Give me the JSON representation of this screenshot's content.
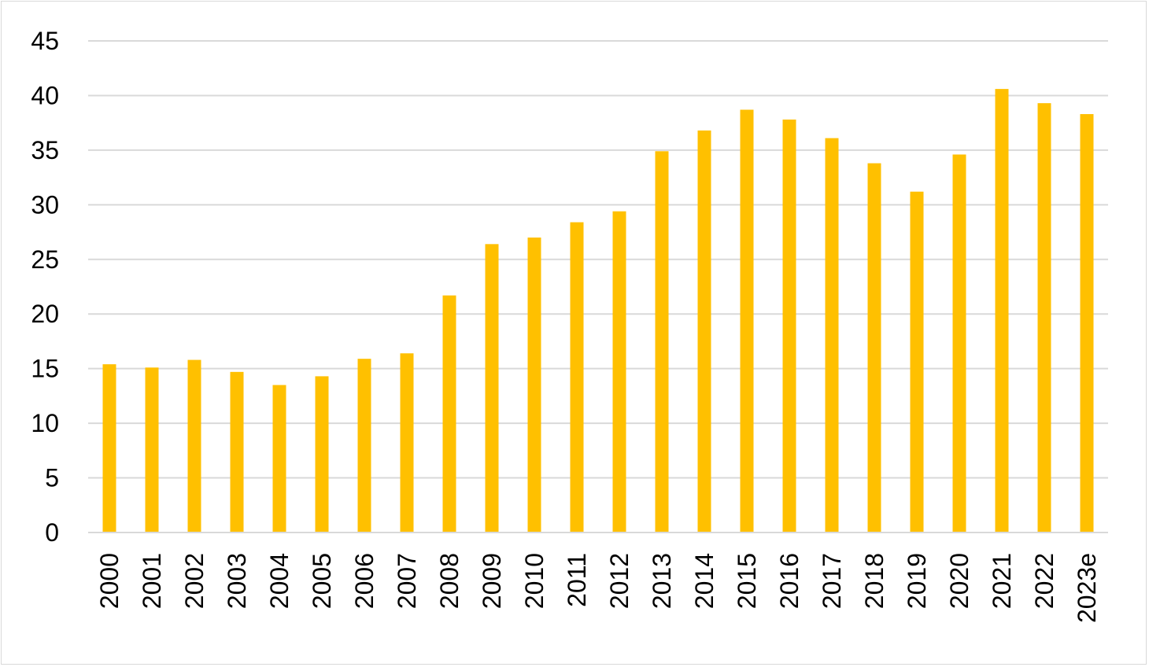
{
  "chart_data": {
    "type": "bar",
    "title": "",
    "xlabel": "",
    "ylabel": "",
    "categories": [
      "2000",
      "2001",
      "2002",
      "2003",
      "2004",
      "2005",
      "2006",
      "2007",
      "2008",
      "2009",
      "2010",
      "2011",
      "2012",
      "2013",
      "2014",
      "2015",
      "2016",
      "2017",
      "2018",
      "2019",
      "2020",
      "2021",
      "2022",
      "2023e"
    ],
    "values": [
      15.4,
      15.1,
      15.8,
      14.7,
      13.5,
      14.3,
      15.9,
      16.4,
      21.7,
      26.4,
      27.0,
      28.4,
      29.4,
      34.9,
      36.8,
      38.7,
      37.8,
      36.1,
      33.8,
      31.2,
      34.6,
      40.6,
      39.3,
      38.3
    ],
    "ylim": [
      0,
      45
    ],
    "yticks": [
      "0",
      "5",
      "10",
      "15",
      "20",
      "25",
      "30",
      "35",
      "40",
      "45"
    ],
    "grid": true,
    "legend": "none",
    "colors": {
      "bar": "#FFC000",
      "grid": "#D9D9D9",
      "axis": "#D9D9D9",
      "text": "#000000"
    }
  }
}
